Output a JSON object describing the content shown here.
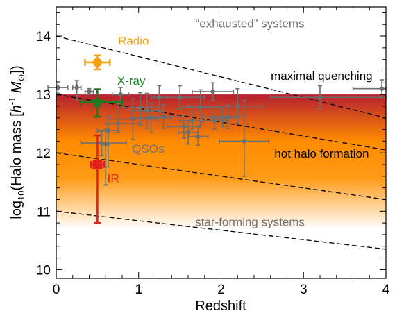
{
  "chart_data": {
    "type": "scatter",
    "xlabel": "Redshift",
    "ylabel_parts": {
      "prefix": "log",
      "subscript": "10",
      "open": "(Halo mass [",
      "h": "h",
      "exponent": "-1",
      "M": "M",
      "msun_sub": "⊙",
      "close": "])"
    },
    "xlim": [
      0,
      4
    ],
    "ylim": [
      9.85,
      14.5
    ],
    "xticks": [
      {
        "value": 0,
        "label": "0"
      },
      {
        "value": 1,
        "label": "1"
      },
      {
        "value": 2,
        "label": "2"
      },
      {
        "value": 3,
        "label": "3"
      },
      {
        "value": 4,
        "label": "4"
      }
    ],
    "yticks": [
      {
        "value": 10,
        "label": "10"
      },
      {
        "value": 11,
        "label": "11"
      },
      {
        "value": 12,
        "label": "12"
      },
      {
        "value": 13,
        "label": "13"
      },
      {
        "value": 14,
        "label": "14"
      }
    ],
    "shaded_band": {
      "y_range": [
        10.7,
        13.0
      ],
      "top_color": "#b51e30",
      "mid_color": "#ff8c00",
      "bottom_color": "#ffffff"
    },
    "dashed_lines": [
      {
        "x": [
          0,
          4
        ],
        "y": [
          14.0,
          12.6
        ]
      },
      {
        "x": [
          0,
          4
        ],
        "y": [
          13.0,
          12.05
        ]
      },
      {
        "x": [
          0,
          4
        ],
        "y": [
          12.0,
          11.2
        ]
      },
      {
        "x": [
          0,
          4
        ],
        "y": [
          11.0,
          10.35
        ]
      }
    ],
    "annotations": [
      {
        "text": "“exhausted” systems",
        "x": 2.35,
        "y": 14.15,
        "color": "#707070",
        "anchor": "middle"
      },
      {
        "text": "maximal quenching",
        "x": 3.22,
        "y": 13.25,
        "color": "#000000",
        "anchor": "middle"
      },
      {
        "text": "hot halo formation",
        "x": 3.22,
        "y": 11.92,
        "color": "#000000",
        "anchor": "middle"
      },
      {
        "text": "star-forming systems",
        "x": 2.35,
        "y": 10.75,
        "color": "#707070",
        "anchor": "middle"
      },
      {
        "text": "Radio",
        "x": 0.75,
        "y": 13.85,
        "color": "#f5a20a",
        "anchor": "start"
      },
      {
        "text": "X-ray",
        "x": 0.74,
        "y": 13.17,
        "color": "#1f8c1f",
        "anchor": "start"
      },
      {
        "text": "QSOs",
        "x": 0.92,
        "y": 12.0,
        "color": "#707070",
        "anchor": "start"
      },
      {
        "text": "IR",
        "x": 0.62,
        "y": 11.5,
        "color": "#e3221d",
        "anchor": "start"
      }
    ],
    "series": [
      {
        "name": "QSOs",
        "color": "#6e6e6e",
        "marker": "circle",
        "points": [
          {
            "x": 0.02,
            "y": 13.12,
            "xerr": [
              0.12,
              0.12
            ],
            "yerr": [
              0.1,
              0.1
            ]
          },
          {
            "x": 0.25,
            "y": 13.12,
            "xerr": [
              0.05,
              0.05
            ],
            "yerr": [
              0.22,
              0.12
            ]
          },
          {
            "x": 0.4,
            "y": 13.05,
            "xerr": [
              0.05,
              0.05
            ],
            "yerr": [
              0.05,
              0.05
            ]
          },
          {
            "x": 0.63,
            "y": 12.38,
            "xerr": [
              0.13,
              0.13
            ],
            "yerr": [
              0.62,
              0.25
            ]
          },
          {
            "x": 0.55,
            "y": 12.17,
            "xerr": [
              0.25,
              0.3
            ],
            "yerr": [
              0.22,
              0.2
            ]
          },
          {
            "x": 0.6,
            "y": 12.15,
            "xerr": [
              0.05,
              0.05
            ],
            "yerr": [
              0.7,
              0.25
            ]
          },
          {
            "x": 0.75,
            "y": 12.5,
            "xerr": [
              0.15,
              0.25
            ],
            "yerr": [
              0.15,
              0.35
            ]
          },
          {
            "x": 0.78,
            "y": 13.0,
            "xerr": [
              0.1,
              0.1
            ],
            "yerr": [
              0.12,
              0.12
            ]
          },
          {
            "x": 0.93,
            "y": 12.58,
            "xerr": [
              0.3,
              0.3
            ],
            "yerr": [
              0.35,
              0.35
            ]
          },
          {
            "x": 1.02,
            "y": 12.78,
            "xerr": [
              0.2,
              0.2
            ],
            "yerr": [
              0.3,
              0.25
            ]
          },
          {
            "x": 1.1,
            "y": 12.72,
            "xerr": [
              0.2,
              0.2
            ],
            "yerr": [
              0.3,
              0.3
            ]
          },
          {
            "x": 1.25,
            "y": 12.95,
            "xerr": [
              0.1,
              0.1
            ],
            "yerr": [
              0.25,
              0.2
            ]
          },
          {
            "x": 1.15,
            "y": 12.6,
            "xerr": [
              0.25,
              0.25
            ],
            "yerr": [
              0.25,
              0.25
            ]
          },
          {
            "x": 1.3,
            "y": 12.62,
            "xerr": [
              0.2,
              0.2
            ],
            "yerr": [
              0.2,
              0.2
            ]
          },
          {
            "x": 1.5,
            "y": 12.95,
            "xerr": [
              0.3,
              0.3
            ],
            "yerr": [
              0.2,
              0.2
            ]
          },
          {
            "x": 1.55,
            "y": 12.45,
            "xerr": [
              0.2,
              0.2
            ],
            "yerr": [
              0.2,
              0.2
            ]
          },
          {
            "x": 1.6,
            "y": 12.35,
            "xerr": [
              0.12,
              0.12
            ],
            "yerr": [
              0.2,
              0.2
            ]
          },
          {
            "x": 1.65,
            "y": 12.55,
            "xerr": [
              0.15,
              0.15
            ],
            "yerr": [
              0.15,
              0.15
            ]
          },
          {
            "x": 1.72,
            "y": 12.28,
            "xerr": [
              0.12,
              0.12
            ],
            "yerr": [
              0.15,
              0.15
            ]
          },
          {
            "x": 1.75,
            "y": 12.78,
            "xerr": [
              0.25,
              0.25
            ],
            "yerr": [
              0.3,
              0.3
            ]
          },
          {
            "x": 1.9,
            "y": 13.05,
            "xerr": [
              0.25,
              0.25
            ],
            "yerr": [
              0.15,
              0.15
            ]
          },
          {
            "x": 1.92,
            "y": 12.55,
            "xerr": [
              0.15,
              0.15
            ],
            "yerr": [
              0.15,
              0.15
            ]
          },
          {
            "x": 2.02,
            "y": 12.6,
            "xerr": [
              0.15,
              0.15
            ],
            "yerr": [
              0.15,
              0.15
            ]
          },
          {
            "x": 2.08,
            "y": 12.62,
            "xerr": [
              0.3,
              0.2
            ],
            "yerr": [
              0.2,
              0.2
            ]
          },
          {
            "x": 2.2,
            "y": 12.8,
            "xerr": [
              0.6,
              0.3
            ],
            "yerr": [
              0.3,
              0.3
            ]
          },
          {
            "x": 2.28,
            "y": 12.2,
            "xerr": [
              0.3,
              0.3
            ],
            "yerr": [
              0.6,
              0.7
            ]
          },
          {
            "x": 3.2,
            "y": 12.95,
            "xerr": [
              0.6,
              0.8
            ],
            "yerr": [
              0.2,
              0.2
            ]
          },
          {
            "x": 3.95,
            "y": 13.1,
            "xerr": [
              0.35,
              0.05
            ],
            "yerr": [
              0.15,
              0.15
            ]
          }
        ]
      },
      {
        "name": "Radio",
        "color": "#f5a20a",
        "marker": "circle",
        "points": [
          {
            "x": 0.5,
            "y": 13.55,
            "xerr": [
              0.15,
              0.15
            ],
            "yerr": [
              0.12,
              0.12
            ]
          }
        ]
      },
      {
        "name": "X-ray",
        "color": "#1f7a1f",
        "marker": "star",
        "points": [
          {
            "x": 0.5,
            "y": 12.87,
            "xerr": [
              0.2,
              0.3
            ],
            "yerr": [
              0.25,
              0.22
            ]
          }
        ]
      },
      {
        "name": "IR",
        "color": "#e3221d",
        "marker": "square",
        "points": [
          {
            "x": 0.5,
            "y": 11.8,
            "xerr": [
              0.08,
              0.08
            ],
            "yerr": [
              1.0,
              0.5
            ]
          }
        ]
      }
    ]
  }
}
